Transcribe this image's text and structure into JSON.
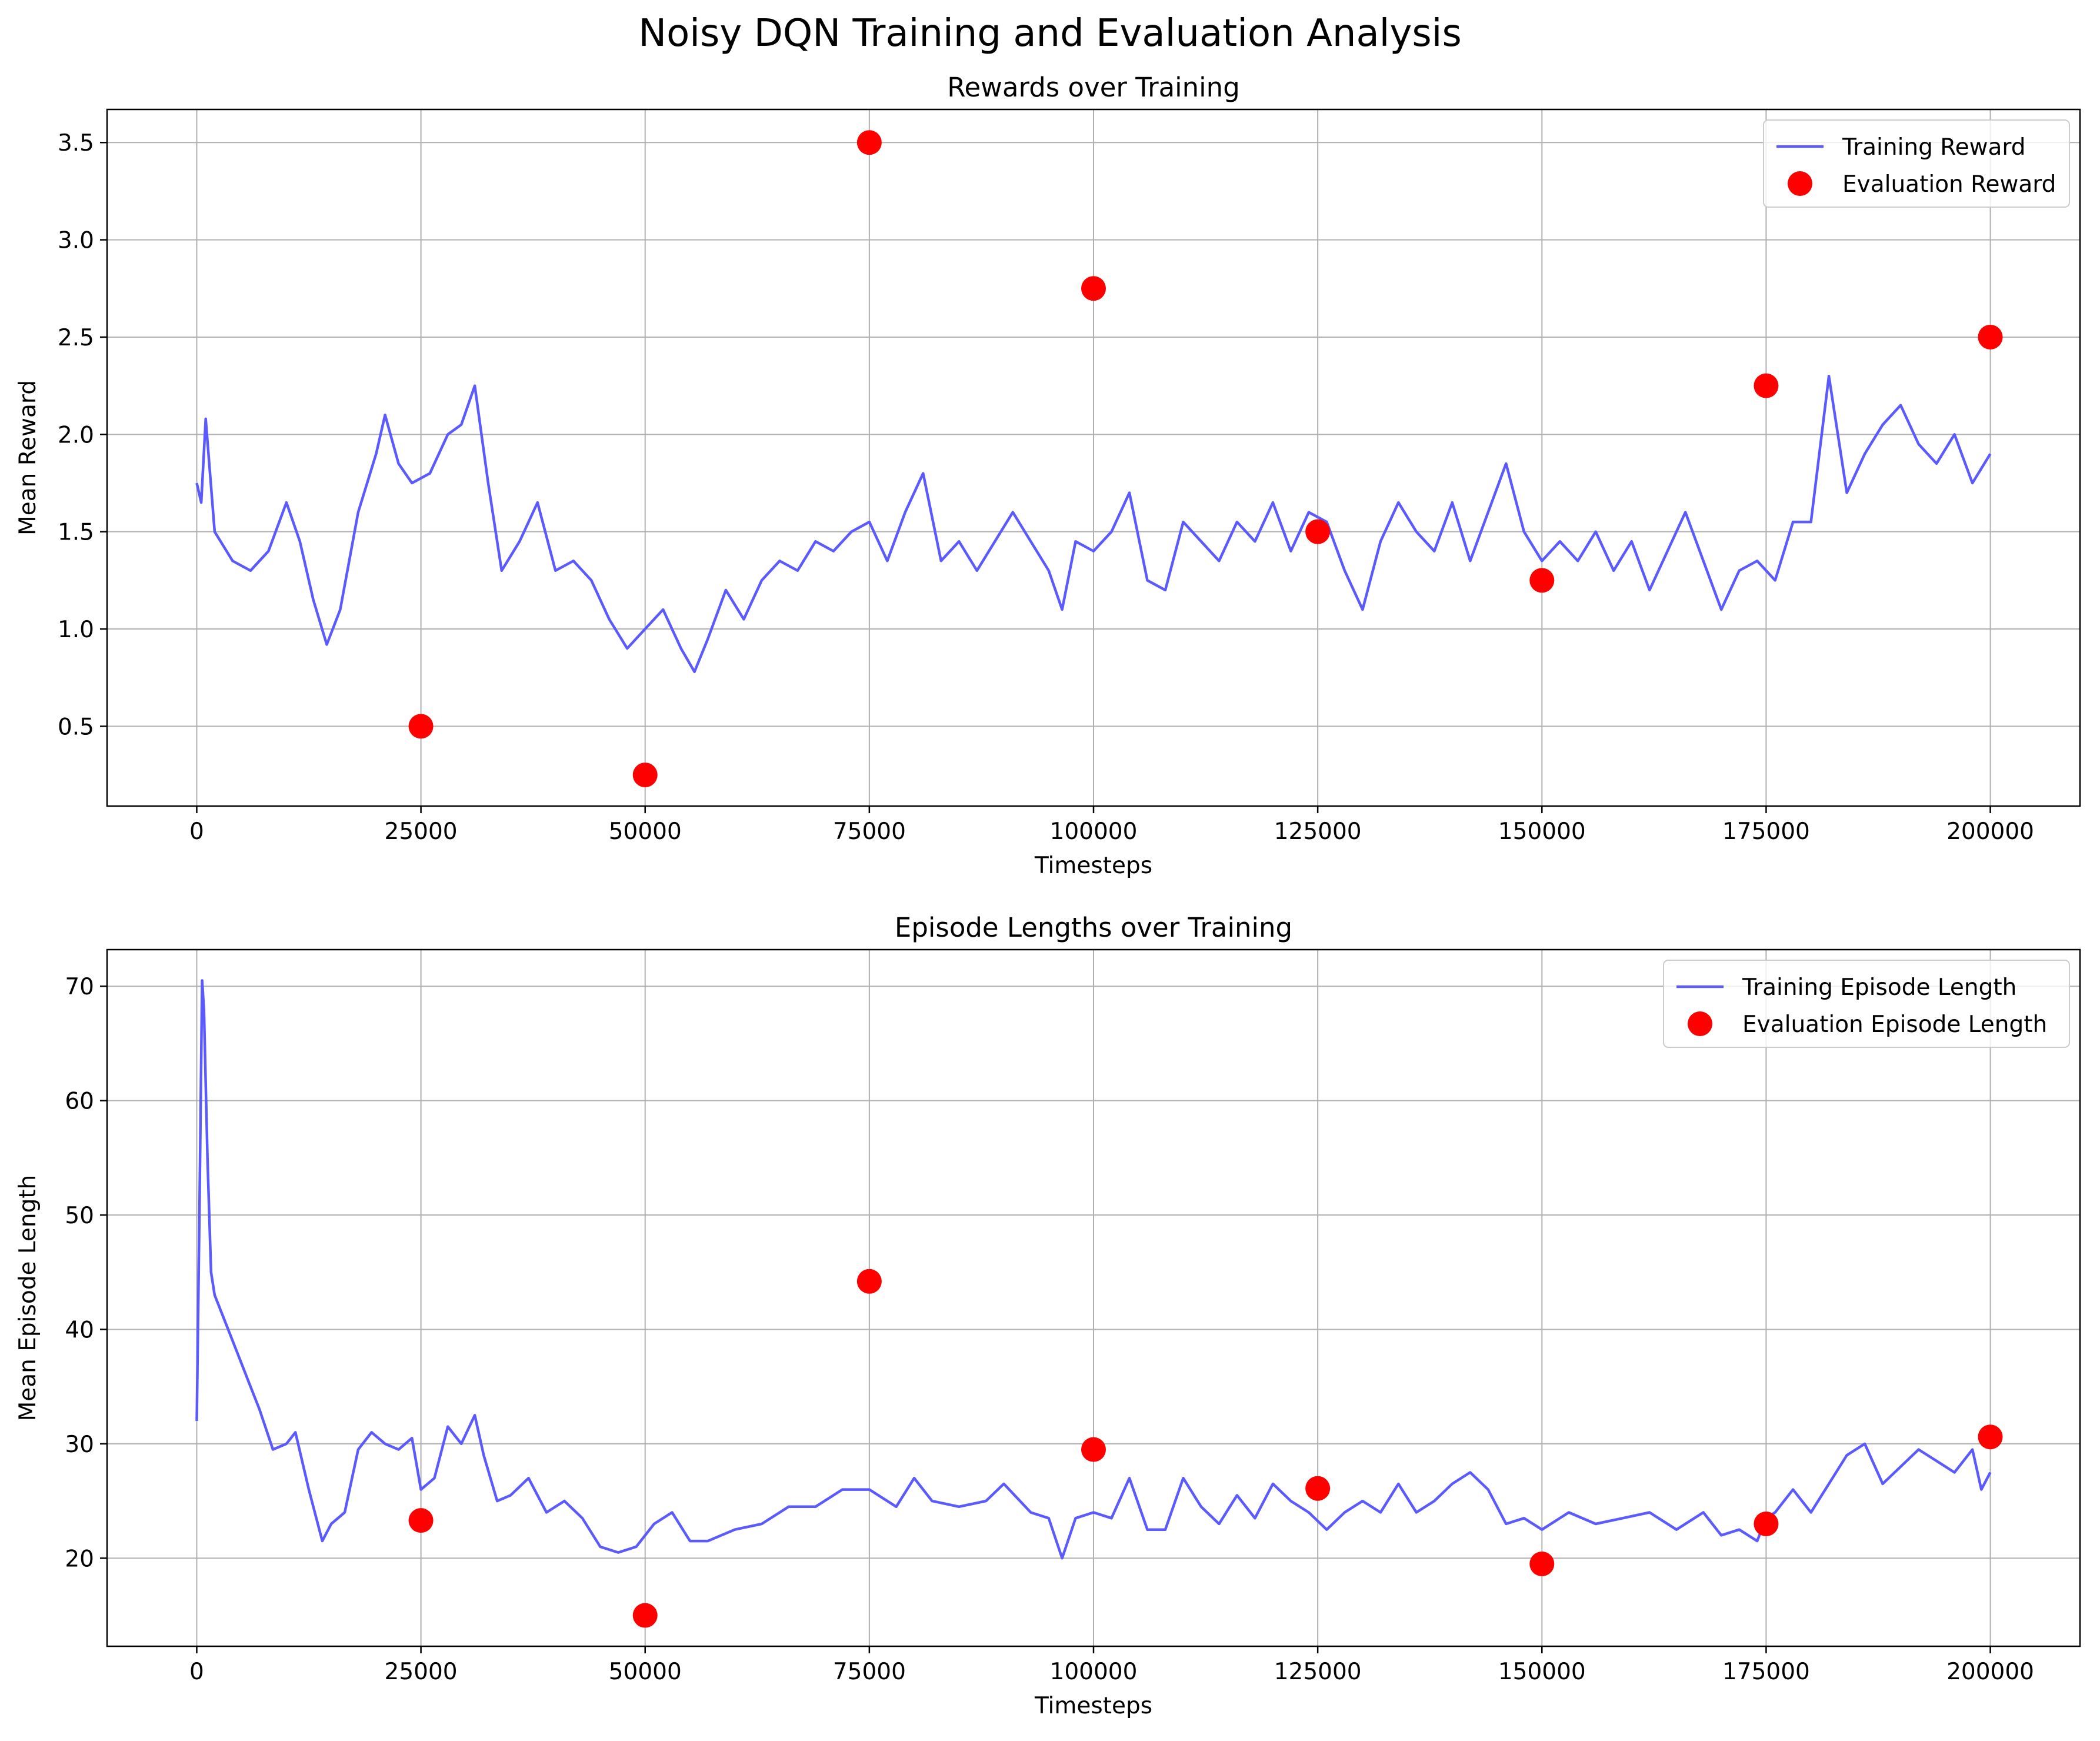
{
  "figure": {
    "title": "Noisy DQN Training and Evaluation Analysis"
  },
  "colors": {
    "training_line": "#5a5aff",
    "evaluation_marker": "#ff0000",
    "grid": "#b0b0b0",
    "axes": "#000000"
  },
  "chart_data": [
    {
      "type": "line",
      "title": "Rewards over Training",
      "xlabel": "Timesteps",
      "ylabel": "Mean Reward",
      "xlim": [
        -10000,
        210000
      ],
      "ylim": [
        0.09,
        3.67
      ],
      "xticks": [
        0,
        25000,
        50000,
        75000,
        100000,
        125000,
        150000,
        175000,
        200000
      ],
      "xtick_labels": [
        "0",
        "25000",
        "50000",
        "75000",
        "100000",
        "125000",
        "150000",
        "175000",
        "200000"
      ],
      "yticks": [
        0.5,
        1.0,
        1.5,
        2.0,
        2.5,
        3.0,
        3.5
      ],
      "ytick_labels": [
        "0.5",
        "1.0",
        "1.5",
        "2.0",
        "2.5",
        "3.0",
        "3.5"
      ],
      "grid": true,
      "legend_position": "upper right",
      "series": [
        {
          "name": "Training Reward",
          "kind": "line",
          "x": [
            0,
            500,
            1000,
            2000,
            4000,
            6000,
            8000,
            10000,
            11500,
            13000,
            14500,
            16000,
            18000,
            20000,
            21000,
            22500,
            24000,
            26000,
            28000,
            29500,
            31000,
            32500,
            34000,
            36000,
            38000,
            40000,
            42000,
            44000,
            46000,
            48000,
            50000,
            52000,
            54000,
            55500,
            57000,
            59000,
            61000,
            63000,
            65000,
            67000,
            69000,
            71000,
            73000,
            75000,
            77000,
            79000,
            81000,
            83000,
            85000,
            87000,
            89000,
            91000,
            93000,
            95000,
            96500,
            98000,
            100000,
            102000,
            104000,
            106000,
            108000,
            110000,
            112000,
            114000,
            116000,
            118000,
            120000,
            122000,
            124000,
            126000,
            128000,
            130000,
            132000,
            134000,
            136000,
            138000,
            140000,
            142000,
            144000,
            146000,
            148000,
            150000,
            152000,
            154000,
            156000,
            158000,
            160000,
            162000,
            164000,
            166000,
            168000,
            170000,
            172000,
            174000,
            176000,
            178000,
            180000,
            182000,
            184000,
            186000,
            188000,
            190000,
            192000,
            194000,
            196000,
            198000,
            200000
          ],
          "y": [
            1.75,
            1.65,
            2.08,
            1.5,
            1.35,
            1.3,
            1.4,
            1.65,
            1.45,
            1.15,
            0.92,
            1.1,
            1.6,
            1.9,
            2.1,
            1.85,
            1.75,
            1.8,
            2.0,
            2.05,
            2.25,
            1.75,
            1.3,
            1.45,
            1.65,
            1.3,
            1.35,
            1.25,
            1.05,
            0.9,
            1.0,
            1.1,
            0.9,
            0.78,
            0.95,
            1.2,
            1.05,
            1.25,
            1.35,
            1.3,
            1.45,
            1.4,
            1.5,
            1.55,
            1.35,
            1.6,
            1.8,
            1.35,
            1.45,
            1.3,
            1.45,
            1.6,
            1.45,
            1.3,
            1.1,
            1.45,
            1.4,
            1.5,
            1.7,
            1.25,
            1.2,
            1.55,
            1.45,
            1.35,
            1.55,
            1.45,
            1.65,
            1.4,
            1.6,
            1.55,
            1.3,
            1.1,
            1.45,
            1.65,
            1.5,
            1.4,
            1.65,
            1.35,
            1.6,
            1.85,
            1.5,
            1.35,
            1.45,
            1.35,
            1.5,
            1.3,
            1.45,
            1.2,
            1.4,
            1.6,
            1.35,
            1.1,
            1.3,
            1.35,
            1.25,
            1.55,
            1.55,
            2.3,
            1.7,
            1.9,
            2.05,
            2.15,
            1.95,
            1.85,
            2.0,
            1.75,
            1.9
          ]
        },
        {
          "name": "Evaluation Reward",
          "kind": "scatter",
          "x": [
            25000,
            50000,
            75000,
            100000,
            125000,
            150000,
            175000,
            200000
          ],
          "y": [
            0.5,
            0.25,
            3.5,
            2.75,
            1.5,
            1.25,
            2.25,
            2.5
          ]
        }
      ]
    },
    {
      "type": "line",
      "title": "Episode Lengths over Training",
      "xlabel": "Timesteps",
      "ylabel": "Mean Episode Length",
      "xlim": [
        -10000,
        210000
      ],
      "ylim": [
        12.3,
        73.2
      ],
      "xticks": [
        0,
        25000,
        50000,
        75000,
        100000,
        125000,
        150000,
        175000,
        200000
      ],
      "xtick_labels": [
        "0",
        "25000",
        "50000",
        "75000",
        "100000",
        "125000",
        "150000",
        "175000",
        "200000"
      ],
      "yticks": [
        20,
        30,
        40,
        50,
        60,
        70
      ],
      "ytick_labels": [
        "20",
        "30",
        "40",
        "50",
        "60",
        "70"
      ],
      "grid": true,
      "legend_position": "upper right",
      "series": [
        {
          "name": "Training Episode Length",
          "kind": "line",
          "x": [
            0,
            300,
            600,
            800,
            1200,
            1600,
            2000,
            3000,
            4500,
            6000,
            7000,
            8500,
            10000,
            11000,
            12500,
            14000,
            15000,
            16500,
            18000,
            19500,
            21000,
            22500,
            24000,
            25000,
            26500,
            28000,
            29500,
            31000,
            32000,
            33500,
            35000,
            37000,
            39000,
            41000,
            43000,
            45000,
            47000,
            49000,
            51000,
            53000,
            55000,
            57000,
            60000,
            63000,
            66000,
            69000,
            72000,
            75000,
            78000,
            80000,
            82000,
            85000,
            88000,
            90000,
            93000,
            95000,
            96500,
            98000,
            100000,
            102000,
            104000,
            106000,
            108000,
            110000,
            112000,
            114000,
            116000,
            118000,
            120000,
            122000,
            124000,
            126000,
            128000,
            130000,
            132000,
            134000,
            136000,
            138000,
            140000,
            142000,
            144000,
            146000,
            148000,
            150000,
            153000,
            156000,
            159000,
            162000,
            165000,
            168000,
            170000,
            172000,
            174000,
            175000,
            176000,
            178000,
            180000,
            182000,
            184000,
            186000,
            188000,
            190000,
            192000,
            194000,
            196000,
            198000,
            199000,
            200000
          ],
          "y": [
            32,
            50,
            70.5,
            68,
            55,
            45,
            43,
            41,
            38,
            35,
            33,
            29.5,
            30,
            31,
            26,
            21.5,
            23,
            24,
            29.5,
            31,
            30,
            29.5,
            30.5,
            26,
            27,
            31.5,
            30,
            32.5,
            29,
            25,
            25.5,
            27,
            24,
            25,
            23.5,
            21,
            20.5,
            21,
            23,
            24,
            21.5,
            21.5,
            22.5,
            23,
            24.5,
            24.5,
            26,
            26,
            24.5,
            27,
            25,
            24.5,
            25,
            26.5,
            24,
            23.5,
            20,
            23.5,
            24,
            23.5,
            27,
            22.5,
            22.5,
            27,
            24.5,
            23,
            25.5,
            23.5,
            26.5,
            25,
            24,
            22.5,
            24,
            25,
            24,
            26.5,
            24,
            25,
            26.5,
            27.5,
            26,
            23,
            23.5,
            22.5,
            24,
            23,
            23.5,
            24,
            22.5,
            24,
            22,
            22.5,
            21.5,
            23.5,
            24,
            26,
            24,
            26.5,
            29,
            30,
            26.5,
            28,
            29.5,
            28.5,
            27.5,
            29.5,
            26,
            27.5
          ]
        },
        {
          "name": "Evaluation Episode Length",
          "kind": "scatter",
          "x": [
            25000,
            50000,
            75000,
            100000,
            125000,
            150000,
            175000,
            200000
          ],
          "y": [
            23.3,
            15.0,
            44.2,
            29.5,
            26.1,
            19.5,
            23.0,
            30.6
          ]
        }
      ]
    }
  ]
}
